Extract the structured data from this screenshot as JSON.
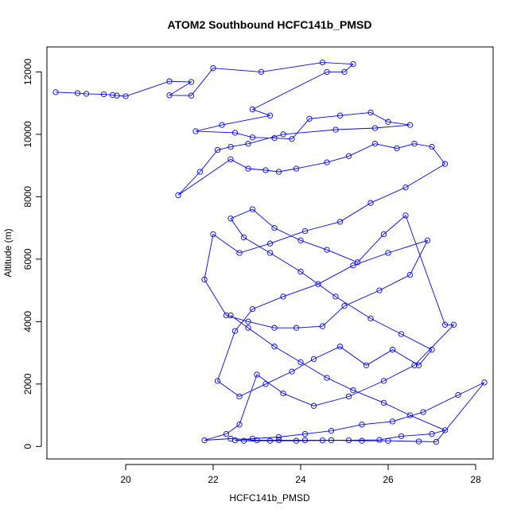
{
  "chart_data": {
    "type": "line",
    "title": "ATOM2 Southbound HCFC141b_PMSD",
    "xlabel": "HCFC141b_PMSD",
    "ylabel": "Altitude (m)",
    "xlim": [
      18.2,
      28.4
    ],
    "ylim": [
      -400,
      12800
    ],
    "x_ticks": [
      20,
      22,
      24,
      26,
      28
    ],
    "y_ticks": [
      0,
      2000,
      4000,
      6000,
      8000,
      10000,
      12000
    ],
    "series_color": "#0000ff",
    "marker": "open-circle",
    "grid": false,
    "legend": "none",
    "x": [
      18.4,
      18.9,
      19.1,
      19.5,
      19.7,
      19.8,
      20.0,
      21.0,
      21.5,
      21.0,
      21.5,
      22.0,
      23.1,
      24.5,
      25.2,
      25.0,
      24.6,
      22.9,
      23.3,
      22.2,
      21.6,
      22.5,
      22.9,
      23.4,
      23.8,
      24.2,
      24.9,
      25.6,
      26.0,
      26.5,
      25.7,
      24.8,
      23.6,
      22.8,
      22.4,
      22.1,
      21.7,
      21.2,
      22.4,
      22.8,
      23.2,
      23.5,
      23.9,
      24.6,
      25.1,
      25.7,
      26.2,
      26.6,
      27.0,
      27.3,
      26.4,
      25.6,
      24.9,
      24.1,
      23.3,
      22.6,
      22.0,
      21.8,
      22.3,
      22.8,
      23.4,
      23.9,
      24.5,
      25.0,
      25.8,
      26.5,
      26.9,
      26.0,
      25.2,
      24.4,
      23.6,
      22.9,
      22.5,
      22.1,
      22.6,
      23.2,
      23.8,
      24.3,
      24.9,
      25.5,
      26.1,
      26.7,
      27.0,
      26.3,
      25.6,
      24.8,
      24.0,
      23.3,
      22.7,
      22.4,
      22.9,
      23.4,
      24.0,
      24.6,
      25.3,
      25.9,
      26.4,
      27.3,
      27.5,
      26.6,
      25.9,
      25.1,
      24.3,
      23.6,
      23.0,
      22.6,
      22.3,
      21.8,
      22.4,
      23.0,
      23.5,
      24.1,
      24.7,
      25.4,
      26.0,
      26.7,
      27.1,
      28.2,
      27.6,
      26.8,
      26.1,
      25.4,
      24.7,
      24.1,
      23.5,
      22.9,
      22.5,
      22.7,
      23.3,
      23.9,
      24.5,
      25.1,
      25.8,
      26.3,
      27.0,
      27.3,
      26.5,
      25.9,
      25.2,
      24.6,
      24.0,
      23.4,
      22.8,
      22.4
    ],
    "y": [
      11350,
      11320,
      11300,
      11280,
      11260,
      11240,
      11220,
      11700,
      11680,
      11250,
      11240,
      12120,
      12000,
      12300,
      12250,
      12000,
      12000,
      10800,
      10600,
      10300,
      10100,
      10050,
      9900,
      9880,
      9850,
      10500,
      10600,
      10700,
      10400,
      10300,
      10200,
      10150,
      10000,
      9700,
      9600,
      9500,
      8800,
      8050,
      9200,
      8900,
      8850,
      8800,
      8900,
      9100,
      9300,
      9700,
      9550,
      9700,
      9600,
      9050,
      8300,
      7800,
      7200,
      6900,
      6500,
      6200,
      6800,
      5350,
      4200,
      4000,
      3800,
      3800,
      3850,
      4500,
      5000,
      5500,
      6600,
      6200,
      5800,
      5200,
      4800,
      4400,
      3700,
      2100,
      1600,
      2000,
      2400,
      2800,
      3200,
      2600,
      3100,
      2600,
      3100,
      3600,
      4100,
      4800,
      5600,
      6200,
      6700,
      7300,
      7600,
      7000,
      6600,
      6300,
      5900,
      6800,
      7400,
      3900,
      3900,
      2600,
      2100,
      1600,
      1300,
      1700,
      2300,
      700,
      400,
      200,
      250,
      200,
      200,
      200,
      200,
      180,
      180,
      160,
      150,
      2050,
      1650,
      1100,
      800,
      700,
      500,
      400,
      300,
      250,
      200,
      180,
      180,
      180,
      190,
      200,
      210,
      330,
      400,
      520,
      1000,
      1400,
      1800,
      2200,
      2700,
      3200,
      3800,
      4200
    ]
  }
}
